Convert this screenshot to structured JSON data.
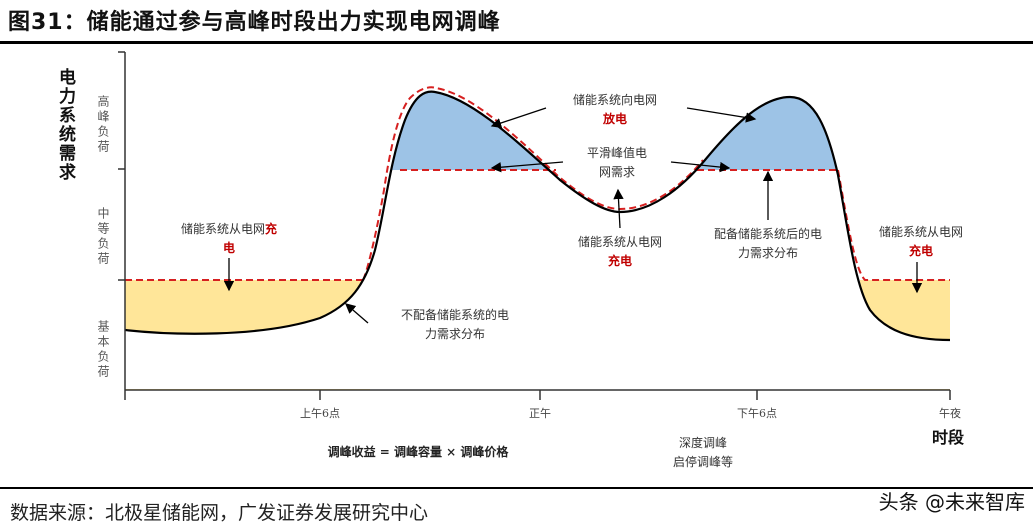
{
  "title": "图31：储能通过参与高峰时段出力实现电网调峰",
  "source": "数据来源：北极星储能网，广发证券发展研究中心",
  "watermark": "头条 @未来智库",
  "y_axis": {
    "title": "电力系统需求",
    "levels": [
      "高峰负荷",
      "中等负荷",
      "基本负荷"
    ]
  },
  "x_axis": {
    "title": "时段",
    "ticks": [
      "上午6点",
      "正午",
      "下午6点",
      "午夜"
    ]
  },
  "annotations": {
    "charge_left": {
      "line1": "储能系统从电网",
      "red1": "充",
      "red2": "电"
    },
    "no_storage": {
      "line1": "不配备储能系统的电",
      "line2": "力需求分布"
    },
    "discharge": {
      "line1": "储能系统向电网",
      "red": "放电"
    },
    "smooth": {
      "line1": "平滑峰值电",
      "line2": "网需求"
    },
    "charge_mid": {
      "line1": "储能系统从电网",
      "red": "充电"
    },
    "with_storage": {
      "line1": "配备储能系统后的电",
      "line2": "力需求分布"
    },
    "charge_right": {
      "line1": "储能系统从电网",
      "red": "充电"
    }
  },
  "formula": "调峰收益 = 调峰容量 × 调峰价格",
  "methods": {
    "line1": "深度调峰",
    "line2": "启停调峰等"
  },
  "colors": {
    "discharge_fill": "#9dc3e6",
    "charge_fill": "#ffe699",
    "dashed_line": "#d62020",
    "red_text": "#c00000"
  }
}
